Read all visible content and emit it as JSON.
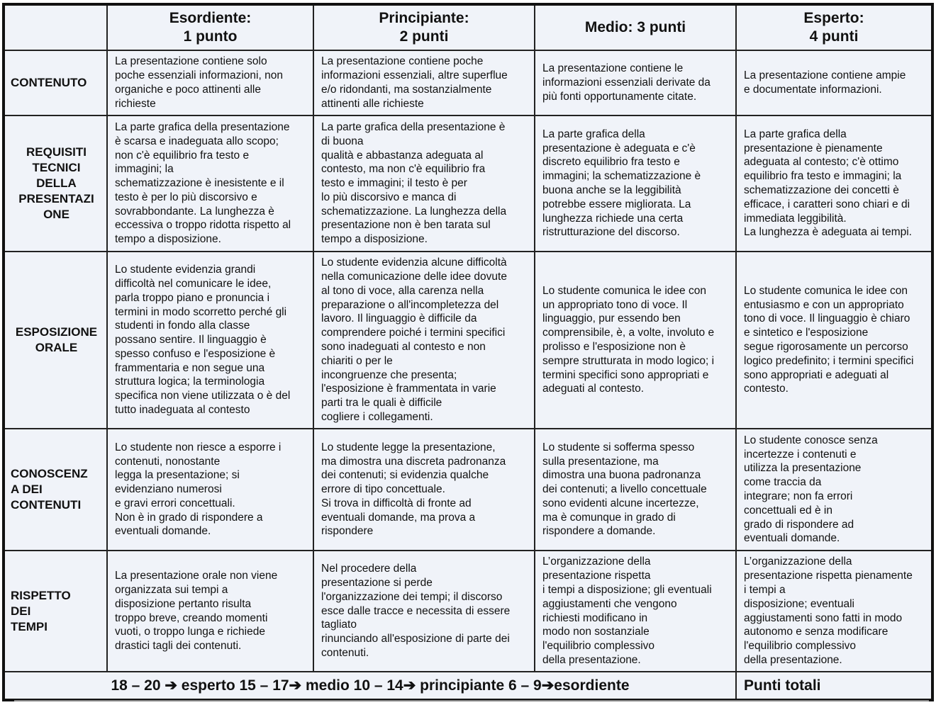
{
  "headers": [
    "",
    "Esordiente:\n1 punto",
    "Principiante:\n2 punti",
    "Medio: 3 punti",
    "Esperto:\n4 punti"
  ],
  "rows": [
    {
      "label": "CONTENUTO",
      "cells": [
        "La presentazione contiene solo\npoche essenziali informazioni, non\norganiche e poco attinenti alle\nrichieste",
        "La presentazione contiene poche\ninformazioni essenziali, altre superflue\ne/o ridondanti, ma sostanzialmente\nattinenti alle richieste",
        "La presentazione contiene le\ninformazioni essenziali derivate da\npiù fonti opportunamente citate.",
        "La presentazione contiene ampie\ne documentate informazioni."
      ]
    },
    {
      "label": "REQUISITI\nTECNICI\nDELLA\nPRESENTAZI\nONE",
      "cells": [
        "La parte grafica della presentazione\nè scarsa e inadeguata allo scopo;\nnon c'è equilibrio fra testo e\nimmagini; la\nschematizzazione è inesistente e il\ntesto è per lo più discorsivo e\nsovrabbondante. La lunghezza è\neccessiva o troppo ridotta rispetto al\ntempo a disposizione.",
        "La parte grafica della presentazione è\ndi buona\nqualità e abbastanza adeguata al\ncontesto, ma non c'è equilibrio fra\ntesto e immagini; il testo è per\nlo più discorsivo e manca di\nschematizzazione. La lunghezza della\npresentazione non è ben tarata sul\ntempo a disposizione.",
        "La parte grafica della\npresentazione è adeguata e c'è\ndiscreto equilibrio fra testo e\nimmagini; la schematizzazione è\nbuona anche se la leggibilità\npotrebbe essere migliorata. La\nlunghezza richiede una certa\nristrutturazione del discorso.",
        "La parte grafica della\npresentazione è pienamente\nadeguata al contesto; c'è ottimo\nequilibrio fra testo e immagini; la\nschematizzazione dei concetti è\nefficace, i caratteri sono chiari e di\nimmediata leggibilità.\nLa lunghezza è adeguata ai tempi."
      ]
    },
    {
      "label": "ESPOSIZIONE\nORALE",
      "cells": [
        "Lo studente evidenzia grandi\ndifficoltà nel comunicare le idee,\nparla troppo piano e pronuncia i\ntermini in modo scorretto perché gli\nstudenti in fondo alla classe\npossano sentire. Il linguaggio è\nspesso confuso e l'esposizione è\nframmentaria e non segue una\nstruttura logica; la terminologia\nspecifica non viene utilizzata o è del\ntutto inadeguata al contesto",
        "Lo studente evidenzia alcune difficoltà\nnella comunicazione delle idee dovute\nal tono di voce, alla carenza nella\npreparazione o all'incompletezza del\nlavoro. Il linguaggio è difficile da\ncomprendere poiché i termini specifici\nsono inadeguati al contesto e non\nchiariti o per le\nincongruenze che presenta;\nl'esposizione è frammentata in varie\nparti tra le quali è difficile\ncogliere i collegamenti.",
        "Lo studente comunica le idee con\nun appropriato tono di voce. Il\nlinguaggio, pur essendo ben\ncomprensibile, è, a volte, involuto e\nprolisso e l'esposizione non è\nsempre strutturata in modo logico; i\ntermini specifici sono appropriati e\nadeguati al contesto.",
        "Lo studente comunica le idee con\nentusiasmo e con un appropriato\ntono di voce. Il linguaggio è chiaro\ne sintetico e l'esposizione\nsegue rigorosamente un percorso\nlogico predefinito; i termini specifici\nsono appropriati e adeguati al\ncontesto."
      ]
    },
    {
      "label": "CONOSCENZ\nA DEI\nCONTENUTI",
      "cells": [
        "Lo studente non riesce a esporre i\ncontenuti, nonostante\nlegga la presentazione; si\nevidenziano numerosi\ne gravi errori concettuali.\nNon è in grado di rispondere a\neventuali domande.",
        "Lo studente legge la presentazione,\nma dimostra una discreta padronanza\ndei contenuti; si evidenzia qualche\nerrore di tipo concettuale.\nSi trova in difficoltà di fronte ad\neventuali domande, ma prova a\nrispondere",
        "Lo studente si sofferma spesso\nsulla presentazione, ma\ndimostra una buona padronanza\ndei contenuti; a livello concettuale\nsono evidenti alcune incertezze,\nma è comunque in grado di\nrispondere a domande.",
        "Lo studente conosce senza\nincertezze i contenuti e\nutilizza la presentazione\ncome traccia da\nintegrare; non fa errori\nconcettuali ed è in\ngrado di rispondere ad\neventuali domande."
      ]
    },
    {
      "label": "RISPETTO\nDEI\nTEMPI",
      "cells": [
        "La presentazione orale non viene\norganizzata sui tempi a\ndisposizione pertanto risulta\ntroppo breve, creando momenti\nvuoti, o troppo lunga e richiede\ndrastici tagli dei contenuti.",
        "Nel procedere della\npresentazione si perde\nl'organizzazione dei tempi; il discorso\nesce dalle tracce e necessita di essere\ntagliato\nrinunciando all'esposizione di parte dei\ncontenuti.",
        "L’organizzazione della\npresentazione rispetta\ni tempi a disposizione; gli eventuali\naggiustamenti che vengono\nrichiesti  modificano in\nmodo non sostanziale\nl'equilibrio complessivo\ndella presentazione.",
        "L’organizzazione della\npresentazione rispetta pienamente\ni tempi a\ndisposizione; eventuali\naggiustamenti sono fatti in modo\nautonomo e senza modificare\nl'equilibrio complessivo\ndella presentazione."
      ]
    }
  ],
  "footer": {
    "scale": "18 – 20 ➔ esperto    15 – 17➔ medio    10 – 14➔ principiante    6 – 9➔esordiente",
    "total_label": "Punti totali"
  }
}
